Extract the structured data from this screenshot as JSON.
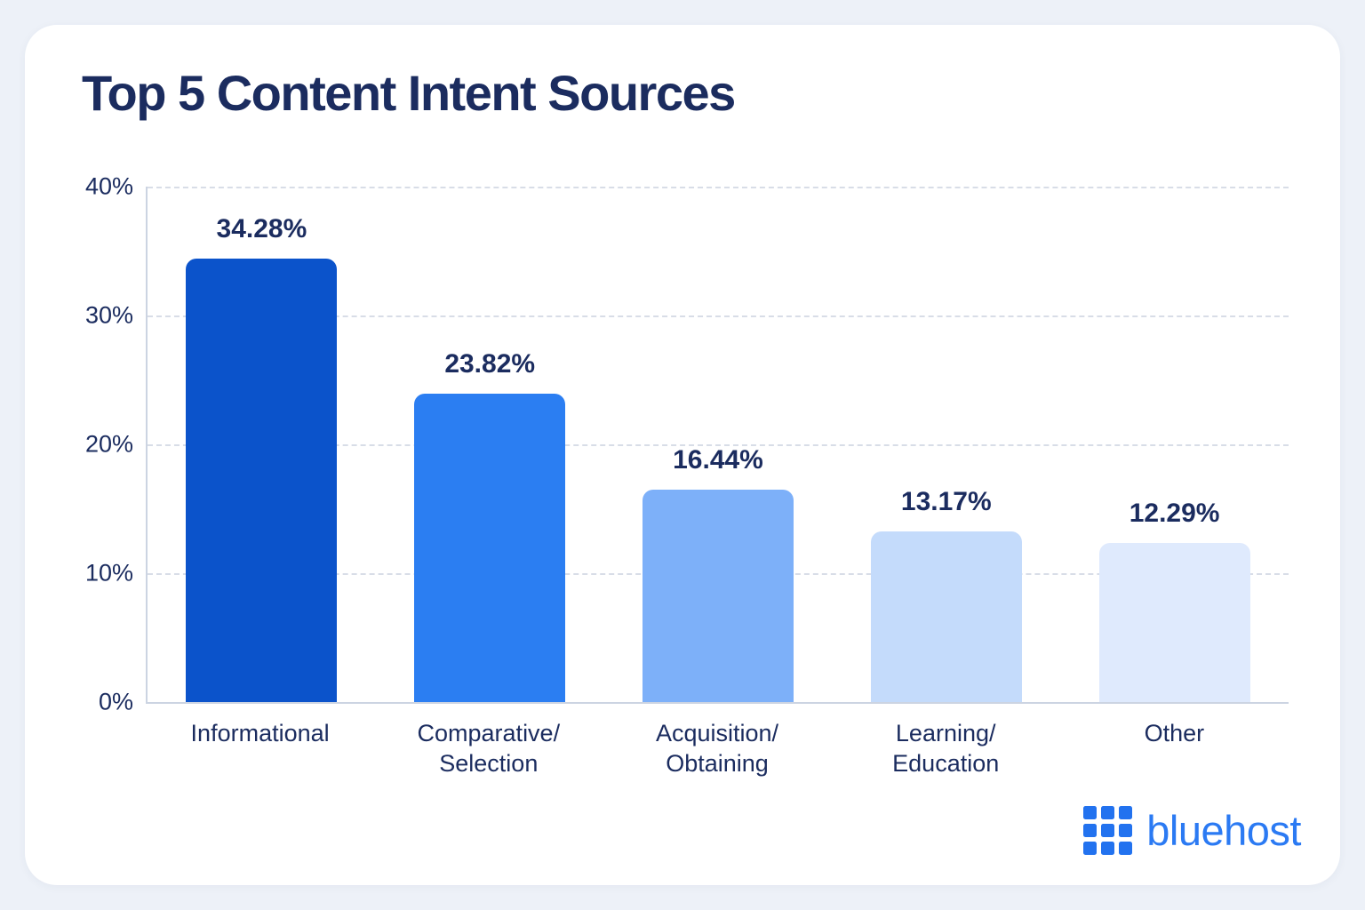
{
  "title": "Top 5 Content Intent Sources",
  "chart_data": {
    "type": "bar",
    "title": "Top 5 Content Intent Sources",
    "categories": [
      "Informational",
      "Comparative/Selection",
      "Acquisition/Obtaining",
      "Learning/Education",
      "Other"
    ],
    "values": [
      34.28,
      23.82,
      16.44,
      13.17,
      12.29
    ],
    "value_labels": [
      "34.28%",
      "23.82%",
      "16.44%",
      "13.17%",
      "12.29%"
    ],
    "x_label_lines": [
      [
        "Informational"
      ],
      [
        "Comparative/",
        "Selection"
      ],
      [
        "Acquisition/",
        "Obtaining"
      ],
      [
        "Learning/",
        "Education"
      ],
      [
        "Other"
      ]
    ],
    "bar_colors": [
      "#0b53cb",
      "#2b7ef2",
      "#7db0f9",
      "#c4dbfb",
      "#dfeafd"
    ],
    "y_ticks": [
      {
        "value": 40,
        "label": "40%"
      },
      {
        "value": 30,
        "label": "30%"
      },
      {
        "value": 20,
        "label": "20%"
      },
      {
        "value": 10,
        "label": "10%"
      },
      {
        "value": 0,
        "label": "0%"
      }
    ],
    "ylim": [
      0,
      40
    ],
    "xlabel": "",
    "ylabel": "",
    "grid": "horizontal-dashed",
    "legend": "none"
  },
  "branding": {
    "logo_text": "bluehost",
    "logo_blue": "#2b7af3"
  },
  "colors": {
    "page_background": "#edf1f8",
    "card_background": "#ffffff",
    "text_navy": "#1b2c5f",
    "axis_line": "#ccd4e2",
    "gridline": "#d8dde7"
  }
}
